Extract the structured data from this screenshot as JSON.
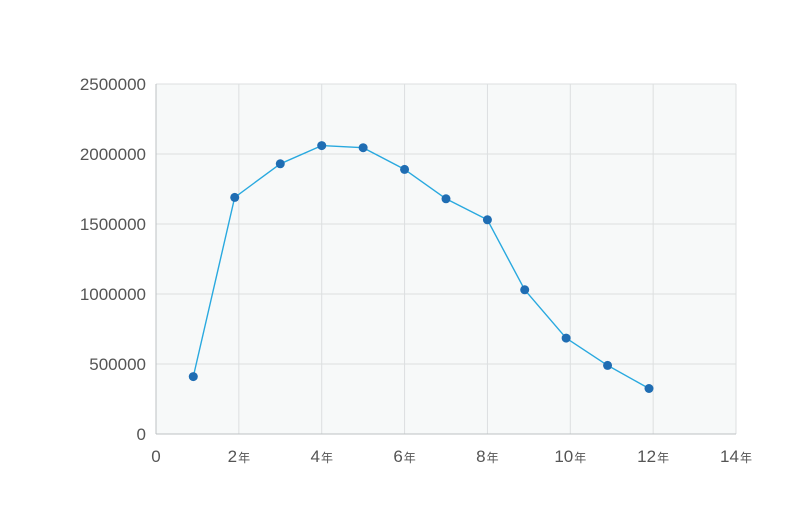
{
  "chart_data": {
    "type": "line",
    "title": "",
    "xlabel": "",
    "ylabel": "",
    "xlim": [
      0,
      14
    ],
    "ylim": [
      0,
      2500000
    ],
    "grid": true,
    "x_unit": "年",
    "x_ticks": [
      {
        "value": 0,
        "num": "0",
        "unit": ""
      },
      {
        "value": 2,
        "num": "2",
        "unit": "年"
      },
      {
        "value": 4,
        "num": "4",
        "unit": "年"
      },
      {
        "value": 6,
        "num": "6",
        "unit": "年"
      },
      {
        "value": 8,
        "num": "8",
        "unit": "年"
      },
      {
        "value": 10,
        "num": "10",
        "unit": "年"
      },
      {
        "value": 12,
        "num": "12",
        "unit": "年"
      },
      {
        "value": 14,
        "num": "14",
        "unit": "年"
      }
    ],
    "y_ticks": [
      {
        "value": 0,
        "label": "0"
      },
      {
        "value": 500000,
        "label": "500000"
      },
      {
        "value": 1000000,
        "label": "1000000"
      },
      {
        "value": 1500000,
        "label": "1500000"
      },
      {
        "value": 2000000,
        "label": "2000000"
      },
      {
        "value": 2500000,
        "label": "2500000"
      }
    ],
    "series": [
      {
        "color": "#29a9df",
        "marker_color": "#1f6db3",
        "x": [
          0.9,
          1.9,
          3.0,
          4.0,
          5.0,
          6.0,
          7.0,
          8.0,
          8.9,
          9.9,
          10.9,
          11.9
        ],
        "values": [
          410000,
          1690000,
          1930000,
          2060000,
          2045000,
          1890000,
          1680000,
          1530000,
          1030000,
          685000,
          490000,
          325000
        ]
      }
    ]
  }
}
